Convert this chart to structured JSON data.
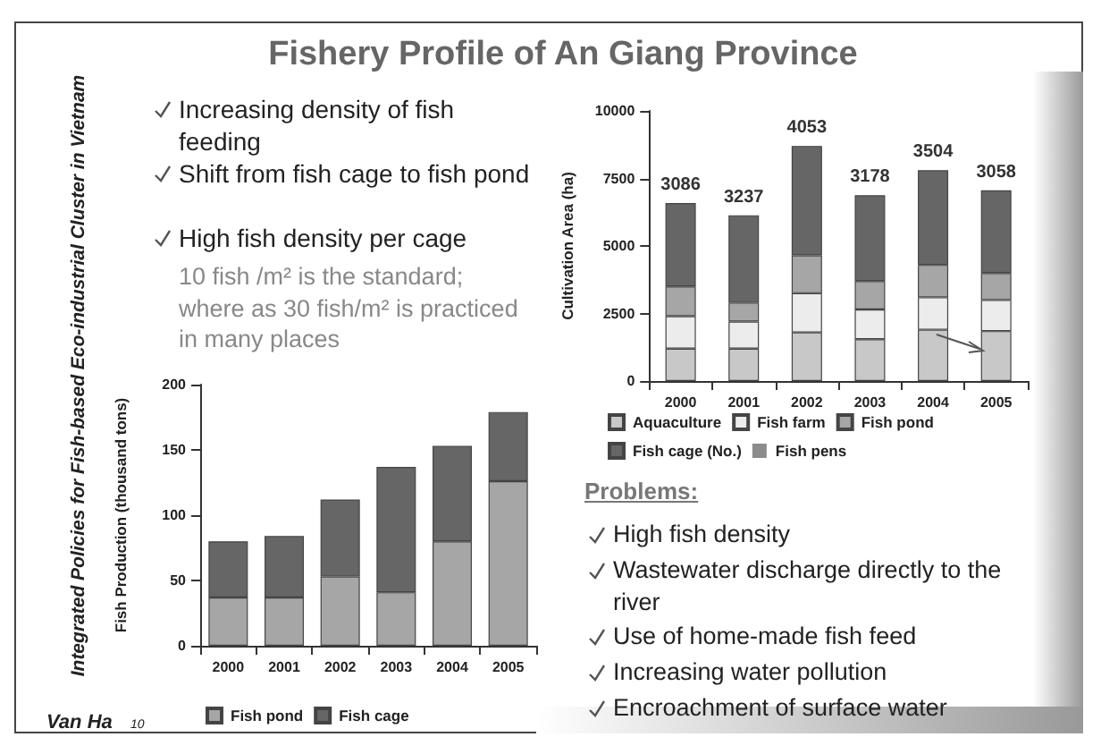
{
  "chart_data": [
    {
      "type": "bar",
      "title": "Fishery Profile of An Giang Province",
      "ylabel": "Cultivation Area (ha)",
      "categories": [
        "2000",
        "2001",
        "2002",
        "2003",
        "2004",
        "2005"
      ],
      "stacked": true,
      "ylim": [
        0,
        10000
      ],
      "yticks": [
        0,
        2500,
        5000,
        7500,
        10000
      ],
      "grid": false,
      "legend": "bottom",
      "series": [
        {
          "name": "Aquaculture",
          "color": "#c8c8c8",
          "values": [
            1200,
            1200,
            1800,
            1550,
            1900,
            1850
          ]
        },
        {
          "name": "Fish farm",
          "color": "#ececec",
          "values": [
            1200,
            1000,
            1450,
            1100,
            1200,
            1150
          ]
        },
        {
          "name": "Fish pond",
          "color": "#a6a6a6",
          "values": [
            1100,
            700,
            1400,
            1050,
            1200,
            1000
          ]
        },
        {
          "name": "Fish cage (No.)",
          "color": "#666666",
          "values": [
            3086,
            3237,
            4053,
            3178,
            3504,
            3058
          ],
          "value_labels": [
            "3086",
            "3237",
            "4053",
            "3178",
            "3504",
            "3058"
          ]
        },
        {
          "name": "Fish pens",
          "color": "#8c8c8c",
          "values": [
            0,
            0,
            0,
            0,
            0,
            0
          ]
        }
      ],
      "annotations": [
        "Increasing density of fish feeding",
        "Shift from fish cage to fish pond",
        "High fish density per cage",
        "10 fish /m² is the standard; where as 30 fish/m² is practiced in many places",
        "Problems:",
        "High fish density",
        "Wastewater discharge directly to the river",
        "Use of home-made fish feed",
        "Increasing water pollution",
        "Encroachment of surface water"
      ]
    },
    {
      "type": "bar",
      "ylabel": "Fish Production (thousand tons)",
      "categories": [
        "2000",
        "2001",
        "2002",
        "2003",
        "2004",
        "2005"
      ],
      "stacked": true,
      "ylim": [
        0,
        200
      ],
      "yticks": [
        0,
        50,
        100,
        150,
        200
      ],
      "grid": false,
      "legend": "bottom",
      "series": [
        {
          "name": "Fish pond",
          "color": "#a6a6a6",
          "values": [
            37,
            37,
            53,
            41,
            80,
            126
          ]
        },
        {
          "name": "Fish cage",
          "color": "#666666",
          "values": [
            43,
            47,
            59,
            96,
            73,
            53
          ]
        }
      ],
      "annotations": [
        "Integrated Policies for Fish-based Eco-industrial Cluster in Vietnam",
        "Van Ha",
        "10"
      ]
    }
  ]
}
